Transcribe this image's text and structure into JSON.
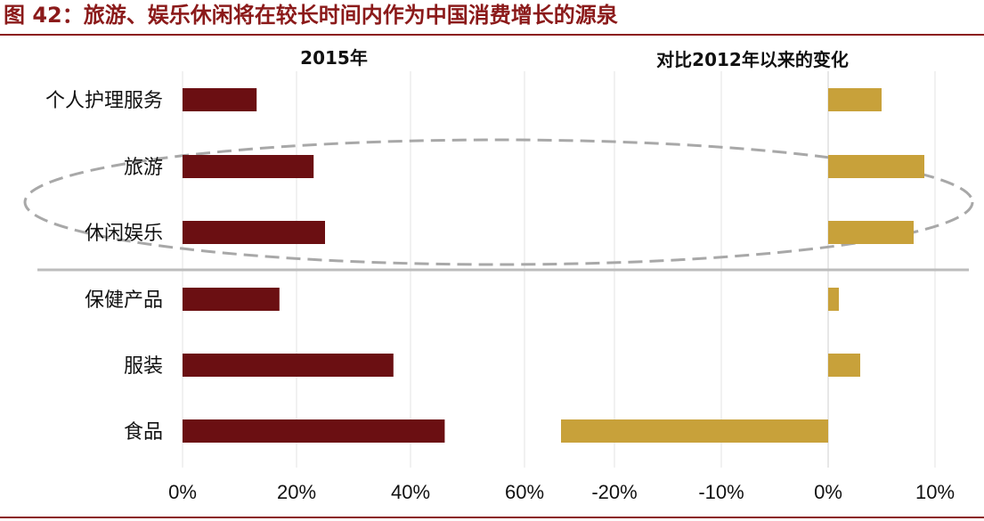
{
  "figure": {
    "title": "图 42：旅游、娱乐休闲将在较长时间内作为中国消费增长的源泉",
    "accent_color": "#8b1a1a"
  },
  "chart_data": [
    {
      "type": "bar",
      "orientation": "horizontal",
      "title": "2015年",
      "categories": [
        "个人护理服务",
        "旅游",
        "休闲娱乐",
        "保健产品",
        "服装",
        "食品"
      ],
      "values": [
        13,
        23,
        25,
        17,
        37,
        46
      ],
      "unit": "%",
      "xlim": [
        0,
        60
      ],
      "xticks": [
        "0%",
        "20%",
        "40%",
        "60%"
      ],
      "bar_color": "#6b0f12",
      "grid": true
    },
    {
      "type": "bar",
      "orientation": "horizontal",
      "title": "对比2012年以来的变化",
      "categories": [
        "个人护理服务",
        "旅游",
        "休闲娱乐",
        "保健产品",
        "服装",
        "食品"
      ],
      "values": [
        5,
        9,
        8,
        1,
        3,
        -25
      ],
      "unit": "%",
      "xlim": [
        -25,
        12
      ],
      "xticks": [
        "-20%",
        "-10%",
        "0%",
        "10%"
      ],
      "bar_color": "#c8a13a",
      "grid": true
    }
  ]
}
